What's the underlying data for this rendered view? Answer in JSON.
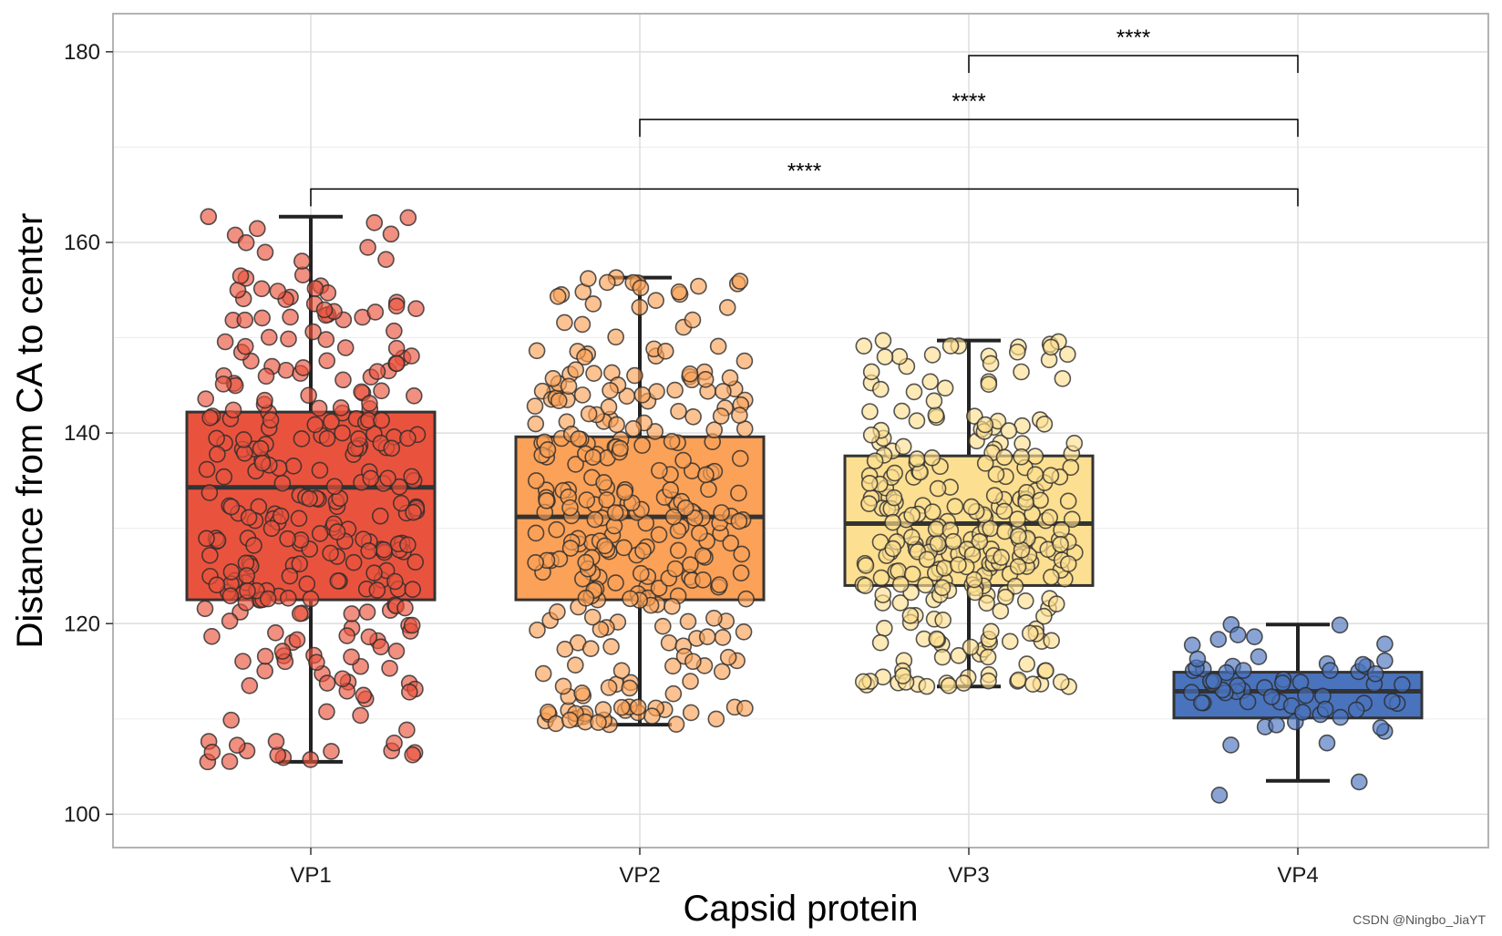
{
  "chart_data": {
    "type": "box-jitter",
    "title": "",
    "xlabel": "Capsid protein",
    "ylabel": "Distance from CA to center",
    "ylim": [
      96.5,
      184
    ],
    "yticks": [
      100,
      120,
      140,
      160,
      180
    ],
    "grid": true,
    "categories": [
      "VP1",
      "VP2",
      "VP3",
      "VP4"
    ],
    "boxes": [
      {
        "name": "VP1",
        "color": "#E9533E",
        "n": 300,
        "q1": 122.5,
        "median": 134.3,
        "q3": 142.2,
        "whisker_low": 105.5,
        "whisker_high": 162.7,
        "point_min": 105.5,
        "point_max": 162.7
      },
      {
        "name": "VP2",
        "color": "#FBA158",
        "n": 300,
        "q1": 122.5,
        "median": 131.2,
        "q3": 139.6,
        "whisker_low": 109.4,
        "whisker_high": 156.3,
        "point_min": 109.4,
        "point_max": 156.3
      },
      {
        "name": "VP3",
        "color": "#FDDF91",
        "n": 280,
        "q1": 124.0,
        "median": 130.5,
        "q3": 137.6,
        "whisker_low": 113.4,
        "whisker_high": 149.7,
        "point_min": 113.4,
        "point_max": 149.7
      },
      {
        "name": "VP4",
        "color": "#4A73BD",
        "n": 62,
        "q1": 110.1,
        "median": 112.9,
        "q3": 114.9,
        "whisker_low": 103.5,
        "whisker_high": 119.9,
        "point_min": 102.0,
        "point_max": 119.9
      }
    ],
    "comparisons": [
      {
        "from": "VP3",
        "to": "VP4",
        "y": 179.6,
        "label": "****"
      },
      {
        "from": "VP2",
        "to": "VP4",
        "y": 172.9,
        "label": "****"
      },
      {
        "from": "VP1",
        "to": "VP4",
        "y": 165.6,
        "label": "****"
      }
    ]
  },
  "watermark": "CSDN @Ningbo_JiaYT"
}
